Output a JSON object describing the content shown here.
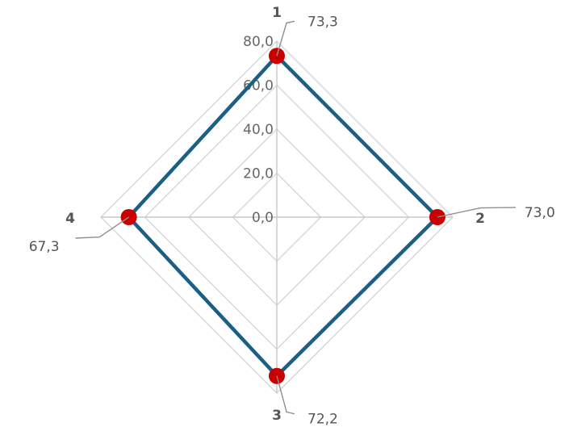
{
  "chart_data": {
    "type": "radar",
    "categories": [
      "1",
      "2",
      "3",
      "4"
    ],
    "series": [
      {
        "values": [
          73.3,
          73.0,
          72.2,
          67.3
        ],
        "data_labels": [
          "73,3",
          "73,0",
          "72,2",
          "67,3"
        ]
      }
    ],
    "rlim": [
      0,
      80
    ],
    "ticks": [
      0,
      20,
      40,
      60,
      80
    ],
    "tick_labels": [
      "0,0",
      "20,0",
      "40,0",
      "60,0",
      "80,0"
    ],
    "grid": true,
    "colors": {
      "series_line": "#1b5f86",
      "marker": "#c80000"
    }
  }
}
